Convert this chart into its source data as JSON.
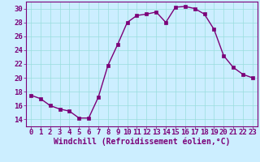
{
  "x": [
    0,
    1,
    2,
    3,
    4,
    5,
    6,
    7,
    8,
    9,
    10,
    11,
    12,
    13,
    14,
    15,
    16,
    17,
    18,
    19,
    20,
    21,
    22,
    23
  ],
  "y": [
    17.5,
    17.0,
    16.0,
    15.5,
    15.2,
    14.2,
    14.2,
    17.2,
    21.8,
    24.8,
    28.0,
    29.0,
    29.2,
    29.5,
    28.0,
    30.2,
    30.3,
    30.0,
    29.2,
    27.0,
    23.2,
    21.5,
    20.5,
    20.0
  ],
  "line_color": "#7b0078",
  "marker": "s",
  "marker_size": 2.5,
  "bg_color": "#cceeff",
  "grid_color": "#99dddd",
  "xlabel": "Windchill (Refroidissement éolien,°C)",
  "xlabel_color": "#7b0078",
  "tick_color": "#7b0078",
  "xlim": [
    -0.5,
    23.5
  ],
  "ylim": [
    13.0,
    31.0
  ],
  "yticks": [
    14,
    16,
    18,
    20,
    22,
    24,
    26,
    28,
    30
  ],
  "xticks": [
    0,
    1,
    2,
    3,
    4,
    5,
    6,
    7,
    8,
    9,
    10,
    11,
    12,
    13,
    14,
    15,
    16,
    17,
    18,
    19,
    20,
    21,
    22,
    23
  ],
  "tick_fontsize": 6.5,
  "xlabel_fontsize": 7.0,
  "linewidth": 1.0
}
